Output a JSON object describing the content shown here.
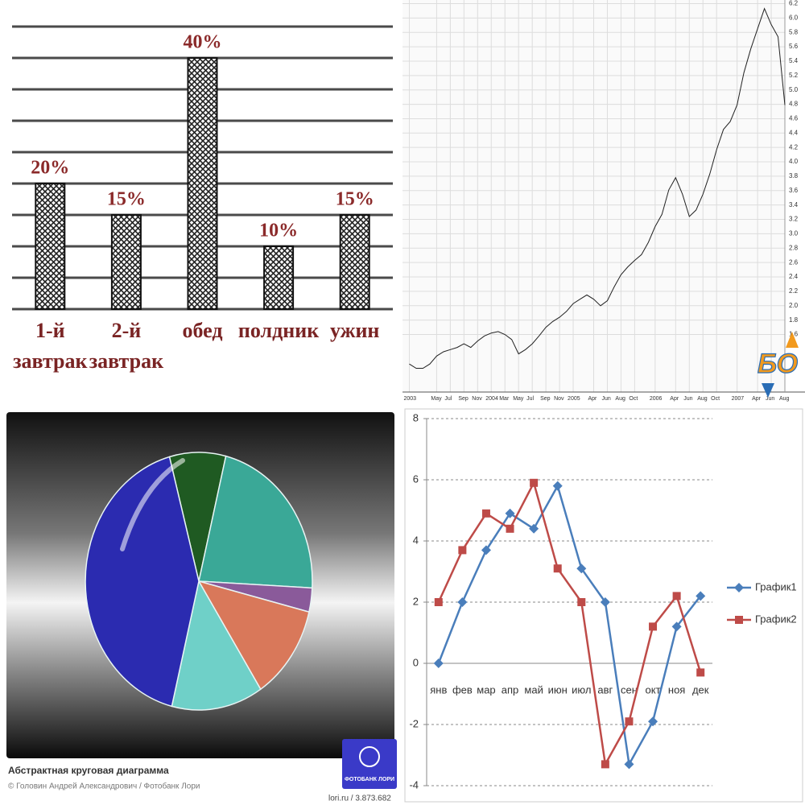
{
  "chart_data": [
    {
      "type": "bar",
      "categories": [
        "1-й завтрак",
        "2-й завтрак",
        "обед",
        "полдник",
        "ужин"
      ],
      "values": [
        20,
        15,
        40,
        10,
        15
      ],
      "value_labels": [
        "20%",
        "15%",
        "40%",
        "10%",
        "15%"
      ],
      "ylim": [
        0,
        45
      ],
      "gridlines": [
        0,
        5,
        10,
        15,
        20,
        25,
        30,
        35,
        40,
        45
      ],
      "color": "#8b2a2a"
    },
    {
      "type": "line",
      "x": [
        "2003-01",
        "2003-02",
        "2003-03",
        "2003-04",
        "2003-05",
        "2003-06",
        "2003-07",
        "2003-08",
        "2003-09",
        "2003-10",
        "2003-11",
        "2003-12",
        "2004-01",
        "2004-02",
        "2004-03",
        "2004-04",
        "2004-05",
        "2004-06",
        "2004-07",
        "2004-08",
        "2004-09",
        "2004-10",
        "2004-11",
        "2004-12",
        "2005-01",
        "2005-02",
        "2005-03",
        "2005-04",
        "2005-05",
        "2005-06",
        "2005-07",
        "2005-08",
        "2005-09",
        "2005-10",
        "2005-11",
        "2005-12",
        "2006-01",
        "2006-02",
        "2006-03",
        "2006-04",
        "2006-05",
        "2006-06",
        "2006-07",
        "2006-08",
        "2006-09",
        "2006-10",
        "2006-11",
        "2006-12",
        "2007-01",
        "2007-02",
        "2007-03",
        "2007-04",
        "2007-05",
        "2007-06",
        "2007-07",
        "2007-08"
      ],
      "values": [
        1.19,
        1.13,
        1.13,
        1.19,
        1.3,
        1.36,
        1.39,
        1.42,
        1.47,
        1.42,
        1.51,
        1.58,
        1.62,
        1.64,
        1.6,
        1.53,
        1.33,
        1.39,
        1.47,
        1.58,
        1.7,
        1.78,
        1.84,
        1.92,
        2.03,
        2.09,
        2.15,
        2.09,
        2.0,
        2.07,
        2.26,
        2.43,
        2.54,
        2.63,
        2.71,
        2.88,
        3.1,
        3.27,
        3.61,
        3.78,
        3.55,
        3.24,
        3.33,
        3.55,
        3.83,
        4.17,
        4.45,
        4.56,
        4.79,
        5.24,
        5.57,
        5.85,
        6.13,
        5.91,
        5.74,
        4.79
      ],
      "color": "#222222",
      "xlim": [
        "2002-12",
        "2007-08"
      ],
      "xticks": [
        {
          "value": "2003-01",
          "label": "2003"
        },
        {
          "value": "2003-05",
          "label": "May"
        },
        {
          "value": "2003-07",
          "label": "Jul"
        },
        {
          "value": "2003-09",
          "label": "Sep"
        },
        {
          "value": "2003-11",
          "label": "Nov"
        },
        {
          "value": "2004-01",
          "label": "2004"
        },
        {
          "value": "2004-03",
          "label": "Mar"
        },
        {
          "value": "2004-05",
          "label": "May"
        },
        {
          "value": "2004-07",
          "label": "Jul"
        },
        {
          "value": "2004-09",
          "label": "Sep"
        },
        {
          "value": "2004-11",
          "label": "Nov"
        },
        {
          "value": "2005-01",
          "label": "2005"
        },
        {
          "value": "2005-04",
          "label": "Apr"
        },
        {
          "value": "2005-06",
          "label": "Jun"
        },
        {
          "value": "2005-08",
          "label": "Aug"
        },
        {
          "value": "2005-10",
          "label": "Oct"
        },
        {
          "value": "2006-01",
          "label": "2006"
        },
        {
          "value": "2006-04",
          "label": "Apr"
        },
        {
          "value": "2006-06",
          "label": "Jun"
        },
        {
          "value": "2006-08",
          "label": "Aug"
        },
        {
          "value": "2006-10",
          "label": "Oct"
        },
        {
          "value": "2007-01",
          "label": "2007"
        },
        {
          "value": "2007-04",
          "label": "Apr"
        },
        {
          "value": "2007-06",
          "label": "Jun"
        },
        {
          "value": "2007-08",
          "label": "Aug"
        }
      ],
      "ylim": [
        0.8,
        6.25
      ],
      "yticks": [
        1.6,
        1.8,
        {
          "value": 2,
          "label": "2.0"
        },
        2.2,
        2.4,
        2.6,
        2.8,
        {
          "value": 3,
          "label": "3.0"
        },
        3.2,
        3.4,
        3.6,
        3.8,
        {
          "value": 4,
          "label": "4.0"
        },
        4.2,
        4.4,
        4.6,
        4.8,
        {
          "value": 5,
          "label": "5.0"
        },
        5.2,
        5.4,
        5.6,
        5.8,
        {
          "value": 6,
          "label": "6.0"
        },
        6.2
      ],
      "grid": true,
      "annotations": [
        "БО"
      ]
    },
    {
      "type": "pie",
      "title": "Абстрактная круговая диаграмма",
      "subtitle": "© Головин Андрей Александрович / Фотобанк Лори",
      "annotations": [
        "lori.ru / 3.873.682",
        "ФОТОБАНК ЛОРИ"
      ],
      "values": [
        8,
        22,
        3,
        12,
        13,
        42
      ],
      "colors": [
        "#1f5a22",
        "#3aa897",
        "#8a5a9a",
        "#d9785a",
        "#6fd0c8",
        "#2b2bb0"
      ]
    },
    {
      "type": "line",
      "categories": [
        "янв",
        "фев",
        "мар",
        "апр",
        "май",
        "июн",
        "июл",
        "авг",
        "сен",
        "окт",
        "ноя",
        "дек"
      ],
      "series": [
        {
          "name": "График1",
          "color": "#4a7ebb",
          "marker": "diamond",
          "values": [
            0,
            2.0,
            3.7,
            4.9,
            4.4,
            5.8,
            3.1,
            2.0,
            -3.3,
            -1.9,
            1.2,
            2.2
          ]
        },
        {
          "name": "График2",
          "color": "#be4b48",
          "marker": "square",
          "values": [
            2.0,
            3.7,
            4.9,
            4.4,
            5.9,
            3.1,
            2.0,
            -3.3,
            -1.9,
            1.2,
            2.2,
            -0.3
          ]
        }
      ],
      "ylim": [
        -4,
        8
      ],
      "yticks": [
        -4,
        -2,
        0,
        2,
        4,
        6,
        8
      ],
      "grid": true,
      "legend": "right"
    }
  ]
}
